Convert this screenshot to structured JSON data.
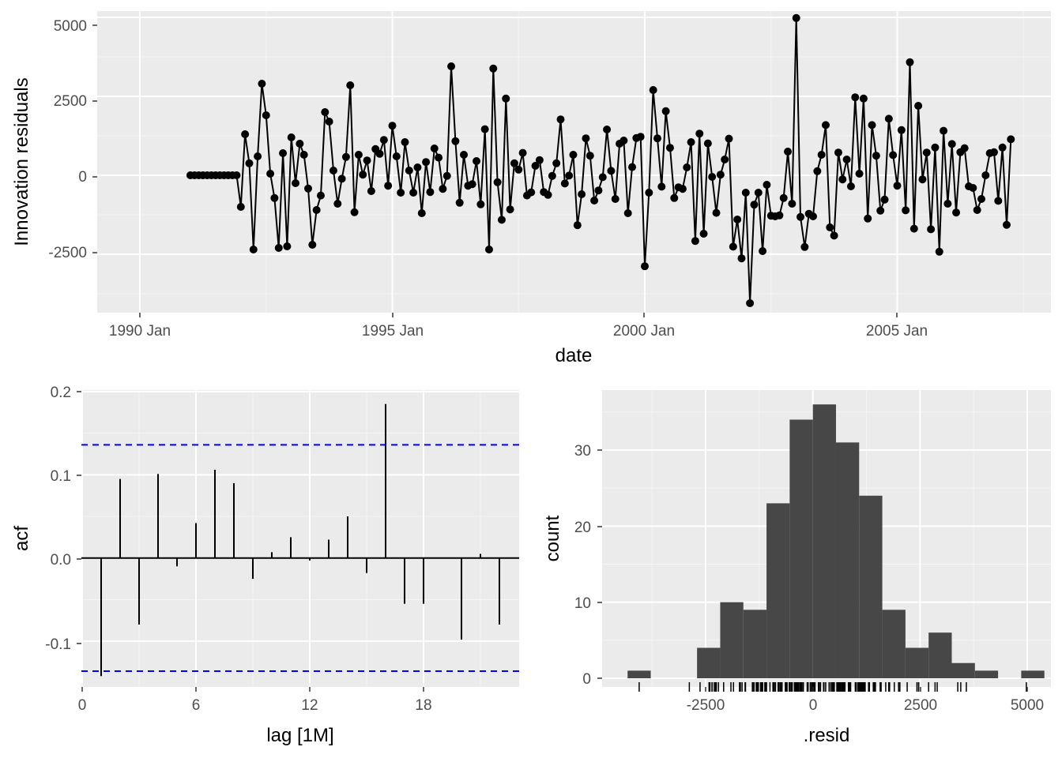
{
  "colors": {
    "panel_bg": "#ebebeb",
    "grid_major": "#ffffff",
    "grid_minor": "#f5f5f5",
    "tick_text": "#4d4d4d",
    "line": "#000000",
    "bar_fill": "#474747",
    "ci_line": "#0000ff"
  },
  "chart_data": [
    {
      "type": "line",
      "title": "",
      "xlabel": "date",
      "ylabel": "Innovation residuals",
      "x_tick_labels": [
        "1990 Jan",
        "1995 Jan",
        "2000 Jan",
        "2005 Jan"
      ],
      "y_tick_labels": [
        "-2500",
        "0",
        "2500",
        "5000"
      ],
      "y_ticks": [
        -2500,
        0,
        2500,
        5000
      ],
      "ylim": [
        -4350,
        5200
      ],
      "x_start": "1991-01",
      "frequency": "monthly",
      "markers": true,
      "values": [
        0,
        0,
        0,
        0,
        0,
        0,
        0,
        0,
        0,
        0,
        0,
        0,
        -1000,
        1300,
        380,
        -2350,
        600,
        2900,
        1900,
        50,
        -720,
        -2300,
        700,
        -2250,
        1200,
        -250,
        1000,
        650,
        -420,
        -2200,
        -1100,
        -640,
        2000,
        1700,
        150,
        -900,
        -110,
        580,
        2850,
        -1170,
        650,
        20,
        470,
        -500,
        830,
        680,
        1120,
        -330,
        1570,
        600,
        -550,
        1050,
        150,
        -550,
        250,
        -1200,
        420,
        -530,
        850,
        560,
        -430,
        -20,
        3450,
        1080,
        -870,
        650,
        -330,
        -280,
        450,
        -920,
        1460,
        -2350,
        3380,
        -220,
        -1410,
        2430,
        -1080,
        380,
        180,
        710,
        -640,
        -540,
        300,
        480,
        -530,
        -620,
        -20,
        380,
        1770,
        -260,
        -10,
        650,
        -1580,
        -600,
        1170,
        620,
        -800,
        -480,
        -60,
        1450,
        140,
        -750,
        1000,
        1100,
        -1200,
        260,
        1180,
        1220,
        -2880,
        -550,
        2700,
        1170,
        -360,
        2030,
        870,
        -720,
        -380,
        -430,
        250,
        1050,
        -2080,
        1320,
        -1850,
        1010,
        -50,
        -1190,
        20,
        500,
        1160,
        -2260,
        -1400,
        -2630,
        -550,
        -4050,
        -930,
        -550,
        -2400,
        -300,
        -1280,
        -1300,
        -1270,
        -720,
        750,
        -900,
        4980,
        -1320,
        -2270,
        -1220,
        -1300,
        130,
        650,
        1590,
        -1650,
        -1910,
        720,
        -130,
        500,
        -350,
        2470,
        50,
        2430,
        -1370,
        1590,
        620,
        -1120,
        -770,
        1790,
        640,
        -330,
        1430,
        -1110,
        3580,
        -1690,
        2200,
        -130,
        720,
        -1710,
        880,
        -2420,
        1410,
        -900,
        990,
        -1180,
        730,
        860,
        -350,
        -400,
        -1100,
        -750,
        0,
        700,
        730,
        -810,
        880,
        -1570,
        1140
      ],
      "series": [
        {
          "values_ref": "values"
        }
      ]
    },
    {
      "type": "bar",
      "title": "",
      "xlabel": "lag [1M]",
      "ylabel": "acf",
      "x_tick_labels": [
        "0",
        "6",
        "12",
        "18"
      ],
      "x_ticks": [
        0,
        6,
        12,
        18
      ],
      "y_tick_labels": [
        "-0.1",
        "0.0",
        "0.1",
        "0.2"
      ],
      "y_ticks": [
        -0.1,
        0.0,
        0.1,
        0.2
      ],
      "xlim": [
        0,
        23
      ],
      "ylim": [
        -0.155,
        0.2
      ],
      "lags": [
        1,
        2,
        3,
        4,
        5,
        6,
        7,
        8,
        9,
        10,
        11,
        12,
        13,
        14,
        15,
        16,
        17,
        18,
        19,
        20,
        21,
        22
      ],
      "values": [
        -0.142,
        0.095,
        -0.08,
        0.101,
        -0.01,
        0.042,
        0.106,
        0.09,
        -0.025,
        0.007,
        0.025,
        -0.003,
        0.022,
        0.05,
        -0.018,
        0.185,
        -0.055,
        -0.055,
        0.0,
        -0.098,
        0.005,
        -0.08
      ],
      "ci": [
        -0.136,
        0.136
      ]
    },
    {
      "type": "bar",
      "subtype": "histogram",
      "title": "",
      "xlabel": ".resid",
      "ylabel": "count",
      "x_tick_labels": [
        "-2500",
        "0",
        "2500",
        "5000"
      ],
      "x_ticks": [
        -2500,
        0,
        2500,
        5000
      ],
      "y_tick_labels": [
        "0",
        "10",
        "20",
        "30"
      ],
      "y_ticks": [
        0,
        10,
        20,
        30
      ],
      "xlim": [
        -4950,
        5500
      ],
      "ylim": [
        -1.5,
        37.5
      ],
      "bin_width": 540,
      "bin_start": -4320,
      "counts": [
        1,
        0,
        0,
        4,
        10,
        9,
        23,
        34,
        36,
        31,
        24,
        9,
        4,
        6,
        2,
        1,
        0,
        1
      ],
      "rug": [
        -4050,
        -2880,
        -2630,
        -2420,
        -2400,
        -2350,
        -2350,
        -2300,
        -2270,
        -2260,
        -2250,
        -2200,
        -2080,
        -1910,
        -1850,
        -1710,
        -1690,
        -1650,
        -1580,
        -1570,
        -1410,
        -1400,
        -1370,
        -1320,
        -1300,
        -1300,
        -1280,
        -1270,
        -1220,
        -1200,
        -1190,
        -1180,
        -1170,
        -1120,
        -1110,
        -1100,
        -1100,
        -1080,
        -1000,
        -930,
        -920,
        -900,
        -900,
        -870,
        -810,
        -800,
        -770,
        -750,
        -750,
        -720,
        -720,
        -640,
        -640,
        -620,
        -600,
        -550,
        -550,
        -550,
        -550,
        -540,
        -530,
        -530,
        -500,
        -480,
        -430,
        -420,
        -400,
        -380,
        -360,
        -350,
        -350,
        -330,
        -330,
        -330,
        -300,
        -280,
        -260,
        -250,
        -220,
        -130,
        -130,
        -110,
        -60,
        -50,
        -20,
        -20,
        -10,
        0,
        0,
        0,
        0,
        0,
        0,
        0,
        0,
        0,
        0,
        0,
        0,
        0,
        5,
        7,
        20,
        20,
        50,
        50,
        130,
        140,
        150,
        150,
        180,
        250,
        250,
        260,
        300,
        380,
        380,
        380,
        420,
        450,
        470,
        480,
        500,
        500,
        560,
        580,
        580,
        600,
        620,
        620,
        640,
        650,
        650,
        650,
        650,
        680,
        700,
        700,
        710,
        720,
        720,
        730,
        730,
        750,
        830,
        850,
        860,
        870,
        880,
        880,
        990,
        1000,
        1000,
        1010,
        1050,
        1050,
        1080,
        1100,
        1120,
        1140,
        1160,
        1170,
        1170,
        1180,
        1200,
        1220,
        1300,
        1320,
        1410,
        1430,
        1450,
        1460,
        1570,
        1590,
        1590,
        1700,
        1770,
        1790,
        1900,
        2000,
        2030,
        2200,
        2430,
        2430,
        2470,
        2700,
        2850,
        2900,
        3380,
        3450,
        3580,
        4980
      ]
    }
  ]
}
